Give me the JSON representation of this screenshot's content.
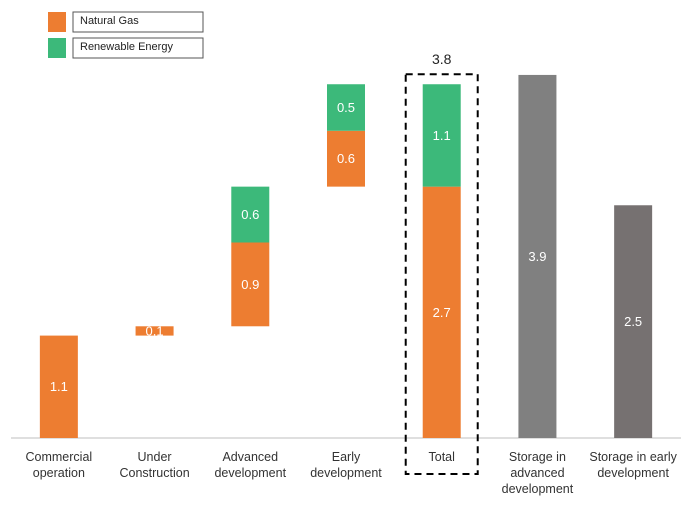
{
  "chart_data": {
    "type": "waterfall",
    "categories": [
      "Commercial operation",
      "Under Construction",
      "Advanced development",
      "Early development",
      "Total",
      "Storage in advanced development",
      "Storage in early development"
    ],
    "roles": [
      "increase",
      "increase",
      "increase",
      "increase",
      "total",
      "standalone",
      "standalone"
    ],
    "series": [
      {
        "name": "Natural Gas",
        "color": "#ed7d31",
        "values": [
          1.1,
          0.1,
          0.9,
          0.6,
          2.7,
          null,
          null
        ]
      },
      {
        "name": "Renewable Energy",
        "color": "#3cb97a",
        "values": [
          null,
          null,
          0.6,
          0.5,
          1.1,
          null,
          null
        ]
      },
      {
        "colors": [
          null,
          null,
          null,
          null,
          null,
          "#808080",
          "#767171"
        ],
        "values": [
          null,
          null,
          null,
          null,
          null,
          3.9,
          2.5
        ]
      }
    ],
    "total_value": 3.8,
    "ylim": [
      0,
      4.2
    ]
  }
}
